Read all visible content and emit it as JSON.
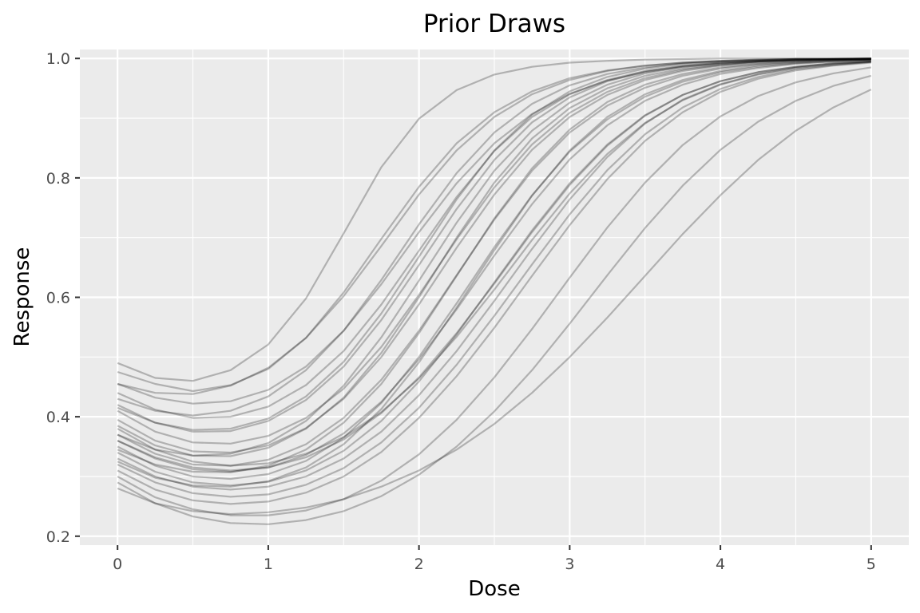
{
  "chart_data": {
    "type": "line",
    "title": "Prior Draws",
    "xlabel": "Dose",
    "ylabel": "Response",
    "xlim": [
      -0.25,
      5.25
    ],
    "ylim": [
      0.185,
      1.015
    ],
    "x_ticks": [
      0,
      1,
      2,
      3,
      4,
      5
    ],
    "x_tick_labels": [
      "0",
      "1",
      "2",
      "3",
      "4",
      "5"
    ],
    "x_minor_ticks": [
      0.5,
      1.5,
      2.5,
      3.5,
      4.5
    ],
    "y_ticks": [
      0.2,
      0.4,
      0.6,
      0.8,
      1.0
    ],
    "y_tick_labels": [
      "0.2",
      "0.4",
      "0.6",
      "0.8",
      "1.0"
    ],
    "y_minor_ticks": [
      0.3,
      0.5,
      0.7,
      0.9
    ],
    "grid": true,
    "legend": "none",
    "x": [
      0,
      0.25,
      0.5,
      0.75,
      1,
      1.25,
      1.5,
      1.75,
      2,
      2.25,
      2.5,
      2.75,
      3,
      3.25,
      3.5,
      3.75,
      4,
      4.25,
      4.5,
      4.75,
      5
    ],
    "series": [
      {
        "values": [
          0.49,
          0.465,
          0.46,
          0.478,
          0.521,
          0.598,
          0.707,
          0.818,
          0.899,
          0.947,
          0.973,
          0.986,
          0.993,
          0.996,
          0.998,
          0.999,
          1.0,
          1.0,
          1.0,
          1.0,
          1.0
        ]
      },
      {
        "values": [
          0.475,
          0.455,
          0.443,
          0.453,
          0.48,
          0.532,
          0.608,
          0.698,
          0.785,
          0.858,
          0.91,
          0.945,
          0.967,
          0.98,
          0.988,
          0.993,
          0.996,
          0.998,
          0.999,
          0.999,
          1.0
        ]
      },
      {
        "values": [
          0.455,
          0.432,
          0.422,
          0.426,
          0.445,
          0.484,
          0.544,
          0.622,
          0.709,
          0.791,
          0.858,
          0.907,
          0.941,
          0.963,
          0.977,
          0.986,
          0.991,
          0.995,
          0.997,
          0.998,
          0.999
        ]
      },
      {
        "values": [
          0.44,
          0.412,
          0.398,
          0.4,
          0.417,
          0.453,
          0.51,
          0.588,
          0.678,
          0.768,
          0.845,
          0.902,
          0.94,
          0.964,
          0.979,
          0.988,
          0.993,
          0.996,
          0.998,
          0.999,
          0.999
        ]
      },
      {
        "values": [
          0.42,
          0.39,
          0.375,
          0.376,
          0.393,
          0.428,
          0.484,
          0.562,
          0.654,
          0.748,
          0.83,
          0.893,
          0.935,
          0.962,
          0.978,
          0.987,
          0.993,
          0.996,
          0.998,
          0.999,
          0.999
        ]
      },
      {
        "values": [
          0.41,
          0.375,
          0.357,
          0.355,
          0.368,
          0.398,
          0.447,
          0.517,
          0.604,
          0.697,
          0.784,
          0.856,
          0.909,
          0.944,
          0.967,
          0.981,
          0.989,
          0.994,
          0.997,
          0.998,
          0.999
        ]
      },
      {
        "values": [
          0.395,
          0.36,
          0.342,
          0.34,
          0.352,
          0.381,
          0.43,
          0.5,
          0.588,
          0.683,
          0.772,
          0.847,
          0.902,
          0.939,
          0.964,
          0.979,
          0.988,
          0.993,
          0.996,
          0.998,
          0.999
        ]
      },
      {
        "values": [
          0.385,
          0.352,
          0.335,
          0.334,
          0.348,
          0.38,
          0.432,
          0.507,
          0.6,
          0.7,
          0.792,
          0.866,
          0.917,
          0.95,
          0.971,
          0.983,
          0.99,
          0.995,
          0.997,
          0.998,
          0.999
        ]
      },
      {
        "values": [
          0.37,
          0.338,
          0.32,
          0.318,
          0.328,
          0.354,
          0.398,
          0.462,
          0.544,
          0.637,
          0.73,
          0.812,
          0.876,
          0.921,
          0.951,
          0.971,
          0.983,
          0.99,
          0.994,
          0.997,
          0.998
        ]
      },
      {
        "values": [
          0.36,
          0.33,
          0.312,
          0.308,
          0.315,
          0.336,
          0.372,
          0.425,
          0.496,
          0.58,
          0.67,
          0.756,
          0.831,
          0.888,
          0.929,
          0.956,
          0.974,
          0.984,
          0.991,
          0.995,
          0.997
        ]
      },
      {
        "values": [
          0.35,
          0.318,
          0.3,
          0.296,
          0.304,
          0.326,
          0.365,
          0.423,
          0.5,
          0.59,
          0.684,
          0.771,
          0.844,
          0.898,
          0.936,
          0.961,
          0.977,
          0.986,
          0.992,
          0.995,
          0.997
        ]
      },
      {
        "values": [
          0.34,
          0.308,
          0.29,
          0.285,
          0.291,
          0.31,
          0.343,
          0.393,
          0.459,
          0.538,
          0.625,
          0.712,
          0.791,
          0.856,
          0.905,
          0.939,
          0.962,
          0.977,
          0.986,
          0.992,
          0.995
        ]
      },
      {
        "values": [
          0.33,
          0.3,
          0.283,
          0.278,
          0.283,
          0.3,
          0.33,
          0.375,
          0.436,
          0.51,
          0.594,
          0.681,
          0.764,
          0.835,
          0.891,
          0.931,
          0.957,
          0.974,
          0.985,
          0.991,
          0.995
        ]
      },
      {
        "values": [
          0.32,
          0.29,
          0.272,
          0.266,
          0.27,
          0.286,
          0.314,
          0.357,
          0.415,
          0.487,
          0.569,
          0.655,
          0.739,
          0.813,
          0.873,
          0.918,
          0.949,
          0.969,
          0.982,
          0.989,
          0.994
        ]
      },
      {
        "values": [
          0.31,
          0.278,
          0.26,
          0.254,
          0.258,
          0.273,
          0.3,
          0.341,
          0.398,
          0.468,
          0.549,
          0.636,
          0.721,
          0.798,
          0.862,
          0.91,
          0.944,
          0.966,
          0.98,
          0.988,
          0.993
        ]
      },
      {
        "values": [
          0.3,
          0.265,
          0.245,
          0.235,
          0.235,
          0.243,
          0.262,
          0.293,
          0.337,
          0.395,
          0.466,
          0.547,
          0.633,
          0.717,
          0.792,
          0.855,
          0.903,
          0.937,
          0.96,
          0.975,
          0.985
        ]
      },
      {
        "values": [
          0.29,
          0.255,
          0.233,
          0.222,
          0.22,
          0.227,
          0.242,
          0.267,
          0.303,
          0.35,
          0.409,
          0.478,
          0.556,
          0.637,
          0.716,
          0.787,
          0.847,
          0.894,
          0.929,
          0.954,
          0.971
        ]
      },
      {
        "values": [
          0.28,
          0.255,
          0.242,
          0.237,
          0.24,
          0.248,
          0.262,
          0.283,
          0.31,
          0.345,
          0.388,
          0.44,
          0.5,
          0.566,
          0.636,
          0.706,
          0.771,
          0.83,
          0.879,
          0.918,
          0.948
        ]
      },
      {
        "values": [
          0.455,
          0.44,
          0.438,
          0.452,
          0.482,
          0.532,
          0.602,
          0.686,
          0.772,
          0.846,
          0.902,
          0.94,
          0.964,
          0.979,
          0.988,
          0.993,
          0.996,
          0.998,
          0.999,
          0.999,
          1.0
        ]
      },
      {
        "values": [
          0.43,
          0.41,
          0.402,
          0.41,
          0.434,
          0.478,
          0.544,
          0.629,
          0.722,
          0.808,
          0.876,
          0.924,
          0.955,
          0.974,
          0.985,
          0.992,
          0.995,
          0.997,
          0.999,
          0.999,
          1.0
        ]
      },
      {
        "values": [
          0.38,
          0.345,
          0.325,
          0.318,
          0.322,
          0.338,
          0.366,
          0.408,
          0.464,
          0.534,
          0.613,
          0.696,
          0.774,
          0.84,
          0.892,
          0.93,
          0.956,
          0.973,
          0.984,
          0.99,
          0.994
        ]
      },
      {
        "values": [
          0.345,
          0.32,
          0.308,
          0.307,
          0.318,
          0.345,
          0.39,
          0.455,
          0.54,
          0.636,
          0.732,
          0.816,
          0.881,
          0.927,
          0.956,
          0.974,
          0.985,
          0.991,
          0.995,
          0.997,
          0.998
        ]
      },
      {
        "values": [
          0.36,
          0.332,
          0.315,
          0.31,
          0.315,
          0.332,
          0.362,
          0.406,
          0.466,
          0.54,
          0.623,
          0.709,
          0.788,
          0.854,
          0.904,
          0.939,
          0.962,
          0.977,
          0.986,
          0.992,
          0.995
        ]
      },
      {
        "values": [
          0.325,
          0.298,
          0.285,
          0.283,
          0.292,
          0.315,
          0.354,
          0.413,
          0.491,
          0.583,
          0.679,
          0.77,
          0.846,
          0.902,
          0.94,
          0.964,
          0.979,
          0.988,
          0.993,
          0.996,
          0.998
        ]
      },
      {
        "values": [
          0.415,
          0.39,
          0.378,
          0.38,
          0.397,
          0.434,
          0.492,
          0.573,
          0.668,
          0.764,
          0.846,
          0.906,
          0.945,
          0.969,
          0.983,
          0.991,
          0.995,
          0.997,
          0.999,
          0.999,
          1.0
        ]
      },
      {
        "values": [
          0.37,
          0.345,
          0.335,
          0.338,
          0.356,
          0.393,
          0.452,
          0.533,
          0.628,
          0.725,
          0.812,
          0.879,
          0.926,
          0.956,
          0.975,
          0.986,
          0.992,
          0.995,
          0.997,
          0.999,
          0.999
        ]
      }
    ]
  }
}
